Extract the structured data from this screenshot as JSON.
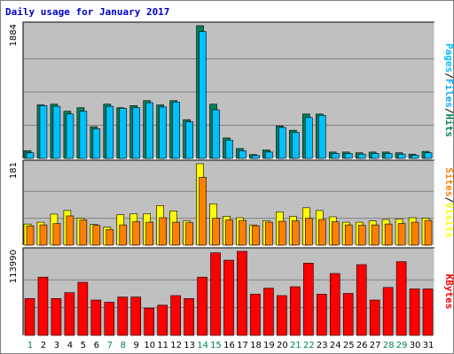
{
  "title": "Daily usage for January 2017",
  "colors": {
    "background": "#ffffff",
    "plot_bg": "#c0c0c0",
    "title": "#0000cc",
    "hits": "#00805c",
    "files": "#00aaff",
    "pages": "#00c0ff",
    "sites": "#ff8000",
    "visits": "#ffff00",
    "kbytes": "#ff0000",
    "weekend_label": "#00805c",
    "weekday_label": "#000000",
    "grid": "#808080"
  },
  "chart_data": [
    {
      "type": "bar",
      "name": "hits-files-pages",
      "ymax_label": "1884",
      "ylim": [
        0,
        1884
      ],
      "x": [
        1,
        2,
        3,
        4,
        5,
        6,
        7,
        8,
        9,
        10,
        11,
        12,
        13,
        14,
        15,
        16,
        17,
        18,
        19,
        20,
        21,
        22,
        23,
        24,
        25,
        26,
        27,
        28,
        29,
        30,
        31
      ],
      "series": [
        {
          "name": "Hits",
          "values": [
            110,
            760,
            770,
            670,
            720,
            450,
            770,
            720,
            750,
            820,
            760,
            820,
            550,
            1884,
            770,
            290,
            140,
            55,
            120,
            460,
            400,
            630,
            630,
            90,
            90,
            80,
            90,
            90,
            80,
            60,
            100
          ]
        },
        {
          "name": "Files",
          "values": [
            80,
            750,
            740,
            630,
            670,
            420,
            740,
            710,
            720,
            790,
            730,
            800,
            520,
            1800,
            690,
            260,
            110,
            40,
            90,
            440,
            370,
            580,
            610,
            70,
            70,
            60,
            70,
            70,
            60,
            45,
            80
          ]
        }
      ],
      "right_label": [
        "Pages",
        "/",
        "Files",
        "/",
        "Hits"
      ]
    },
    {
      "type": "bar",
      "name": "sites-visits",
      "ymax_label": "181",
      "ylim": [
        0,
        181
      ],
      "x": [
        1,
        2,
        3,
        4,
        5,
        6,
        7,
        8,
        9,
        10,
        11,
        12,
        13,
        14,
        15,
        16,
        17,
        18,
        19,
        20,
        21,
        22,
        23,
        24,
        25,
        26,
        27,
        28,
        29,
        30,
        31
      ],
      "series": [
        {
          "name": "Visits",
          "values": [
            47,
            51,
            69,
            77,
            60,
            46,
            40,
            68,
            70,
            70,
            88,
            76,
            54,
            181,
            92,
            64,
            61,
            45,
            54,
            74,
            64,
            83,
            77,
            63,
            51,
            51,
            54,
            57,
            58,
            61,
            60
          ]
        },
        {
          "name": "Sites",
          "values": [
            43,
            45,
            48,
            65,
            56,
            44,
            35,
            45,
            52,
            51,
            61,
            51,
            50,
            151,
            60,
            56,
            55,
            43,
            51,
            53,
            54,
            60,
            57,
            52,
            45,
            44,
            45,
            47,
            48,
            51,
            55
          ]
        }
      ],
      "right_label": [
        "Sites",
        "/",
        "Visits"
      ]
    },
    {
      "type": "bar",
      "name": "kbytes",
      "ymax_label": "113990",
      "ylim": [
        0,
        113990
      ],
      "x": [
        1,
        2,
        3,
        4,
        5,
        6,
        7,
        8,
        9,
        10,
        11,
        12,
        13,
        14,
        15,
        16,
        17,
        18,
        19,
        20,
        21,
        22,
        23,
        24,
        25,
        26,
        27,
        28,
        29,
        30,
        31
      ],
      "series": [
        {
          "name": "KBytes",
          "values": [
            50000,
            79000,
            50000,
            58000,
            72000,
            48000,
            45000,
            52000,
            52000,
            37000,
            41000,
            54000,
            50000,
            79000,
            112000,
            102000,
            114000,
            56000,
            64000,
            54000,
            66000,
            98000,
            56000,
            84000,
            57000,
            96000,
            48000,
            65000,
            100000,
            63000,
            63000
          ]
        }
      ],
      "right_label": [
        "KBytes"
      ]
    }
  ],
  "x_labels": [
    {
      "text": "1",
      "weekend": true
    },
    {
      "text": "2",
      "weekend": false
    },
    {
      "text": "3",
      "weekend": false
    },
    {
      "text": "4",
      "weekend": false
    },
    {
      "text": "5",
      "weekend": false
    },
    {
      "text": "6",
      "weekend": false
    },
    {
      "text": "7",
      "weekend": true
    },
    {
      "text": "8",
      "weekend": true
    },
    {
      "text": "9",
      "weekend": false
    },
    {
      "text": "10",
      "weekend": false
    },
    {
      "text": "11",
      "weekend": false
    },
    {
      "text": "12",
      "weekend": false
    },
    {
      "text": "13",
      "weekend": false
    },
    {
      "text": "14",
      "weekend": true
    },
    {
      "text": "15",
      "weekend": true
    },
    {
      "text": "16",
      "weekend": false
    },
    {
      "text": "17",
      "weekend": false
    },
    {
      "text": "18",
      "weekend": false
    },
    {
      "text": "19",
      "weekend": false
    },
    {
      "text": "20",
      "weekend": false
    },
    {
      "text": "21",
      "weekend": true
    },
    {
      "text": "22",
      "weekend": true
    },
    {
      "text": "23",
      "weekend": false
    },
    {
      "text": "24",
      "weekend": false
    },
    {
      "text": "25",
      "weekend": false
    },
    {
      "text": "26",
      "weekend": false
    },
    {
      "text": "27",
      "weekend": false
    },
    {
      "text": "28",
      "weekend": true
    },
    {
      "text": "29",
      "weekend": true
    },
    {
      "text": "30",
      "weekend": false
    },
    {
      "text": "31",
      "weekend": false
    }
  ]
}
